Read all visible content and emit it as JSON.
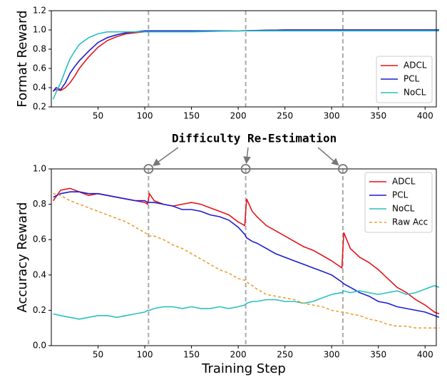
{
  "chart_data": [
    {
      "type": "line",
      "ylabel": "Format Reward",
      "x": [
        2,
        5,
        10,
        15,
        20,
        25,
        30,
        40,
        50,
        60,
        70,
        80,
        90,
        100,
        120,
        150,
        200,
        250,
        300,
        350,
        400,
        415
      ],
      "series": [
        {
          "name": "ADCL",
          "color": "#e3141c",
          "values": [
            0.37,
            0.38,
            0.37,
            0.4,
            0.45,
            0.52,
            0.6,
            0.72,
            0.82,
            0.89,
            0.93,
            0.96,
            0.97,
            0.98,
            0.99,
            0.99,
            0.99,
            1.0,
            1.0,
            1.0,
            1.0,
            1.0
          ]
        },
        {
          "name": "PCL",
          "color": "#1c1cd2",
          "values": [
            0.36,
            0.4,
            0.38,
            0.45,
            0.55,
            0.62,
            0.68,
            0.78,
            0.87,
            0.92,
            0.95,
            0.97,
            0.98,
            0.99,
            0.99,
            0.99,
            0.99,
            1.0,
            1.0,
            1.0,
            1.0,
            1.0
          ]
        },
        {
          "name": "NoCL",
          "color": "#2bbfbf",
          "values": [
            0.28,
            0.35,
            0.45,
            0.58,
            0.7,
            0.78,
            0.85,
            0.92,
            0.96,
            0.98,
            0.98,
            0.98,
            0.98,
            0.98,
            0.98,
            0.98,
            0.99,
            0.99,
            0.99,
            0.99,
            0.99,
            0.99
          ]
        }
      ],
      "xlim": [
        0,
        412
      ],
      "xticks": [
        50,
        100,
        150,
        200,
        250,
        300,
        350,
        400
      ],
      "ylim": [
        0.2,
        1.2
      ],
      "yticks": [
        0.2,
        0.4,
        0.6,
        0.8,
        {
          "value": 1.0,
          "label": "1.0"
        },
        1.2
      ],
      "vlines": [
        104,
        208,
        312
      ],
      "legend": "lower right"
    },
    {
      "type": "line",
      "ylabel": "Accuracy Reward",
      "xlabel": "Training Step",
      "annotation": "Difficulty Re-Estimation",
      "x": [
        2,
        10,
        20,
        30,
        40,
        50,
        60,
        70,
        80,
        90,
        100,
        103,
        105,
        110,
        120,
        130,
        140,
        150,
        160,
        170,
        180,
        190,
        200,
        207,
        209,
        215,
        220,
        230,
        240,
        250,
        260,
        270,
        280,
        290,
        300,
        311,
        313,
        320,
        330,
        340,
        350,
        360,
        370,
        380,
        390,
        400,
        410,
        415
      ],
      "series": [
        {
          "name": "ADCL",
          "color": "#e3141c",
          "values": [
            0.82,
            0.88,
            0.89,
            0.87,
            0.85,
            0.86,
            0.85,
            0.84,
            0.83,
            0.82,
            0.81,
            0.8,
            0.86,
            0.82,
            0.8,
            0.79,
            0.8,
            0.81,
            0.8,
            0.78,
            0.76,
            0.74,
            0.7,
            0.68,
            0.83,
            0.76,
            0.73,
            0.68,
            0.65,
            0.62,
            0.59,
            0.56,
            0.54,
            0.51,
            0.48,
            0.44,
            0.64,
            0.55,
            0.5,
            0.47,
            0.43,
            0.38,
            0.33,
            0.3,
            0.26,
            0.23,
            0.19,
            0.18
          ]
        },
        {
          "name": "PCL",
          "color": "#1c1cd2",
          "values": [
            0.84,
            0.86,
            0.87,
            0.87,
            0.86,
            0.86,
            0.85,
            0.84,
            0.83,
            0.82,
            0.82,
            0.81,
            0.81,
            0.81,
            0.8,
            0.79,
            0.77,
            0.77,
            0.76,
            0.74,
            0.73,
            0.71,
            0.67,
            0.63,
            0.61,
            0.59,
            0.58,
            0.55,
            0.52,
            0.5,
            0.48,
            0.46,
            0.44,
            0.42,
            0.4,
            0.36,
            0.35,
            0.33,
            0.3,
            0.28,
            0.25,
            0.24,
            0.22,
            0.21,
            0.2,
            0.19,
            0.17,
            0.16
          ]
        },
        {
          "name": "NoCL",
          "color": "#2bbfbf",
          "values": [
            0.18,
            0.17,
            0.16,
            0.15,
            0.16,
            0.17,
            0.17,
            0.16,
            0.17,
            0.18,
            0.19,
            0.2,
            0.2,
            0.21,
            0.22,
            0.22,
            0.21,
            0.22,
            0.21,
            0.21,
            0.22,
            0.21,
            0.22,
            0.23,
            0.24,
            0.25,
            0.25,
            0.26,
            0.26,
            0.25,
            0.25,
            0.24,
            0.25,
            0.27,
            0.29,
            0.3,
            0.31,
            0.3,
            0.31,
            0.3,
            0.29,
            0.3,
            0.31,
            0.29,
            0.3,
            0.32,
            0.34,
            0.33
          ]
        },
        {
          "name": "Raw Acc",
          "color": "#eea032",
          "dashed": true,
          "values": [
            0.86,
            0.85,
            0.82,
            0.8,
            0.78,
            0.76,
            0.74,
            0.72,
            0.7,
            0.67,
            0.64,
            0.63,
            0.62,
            0.62,
            0.6,
            0.57,
            0.55,
            0.52,
            0.49,
            0.46,
            0.43,
            0.41,
            0.38,
            0.37,
            0.36,
            0.34,
            0.32,
            0.29,
            0.28,
            0.27,
            0.26,
            0.24,
            0.23,
            0.22,
            0.2,
            0.19,
            0.19,
            0.18,
            0.17,
            0.15,
            0.14,
            0.12,
            0.11,
            0.11,
            0.1,
            0.1,
            0.1,
            0.1
          ]
        }
      ],
      "xlim": [
        0,
        412
      ],
      "xticks": [
        50,
        100,
        150,
        200,
        250,
        300,
        350,
        400
      ],
      "ylim": [
        0,
        1
      ],
      "yticks": [
        {
          "value": 0,
          "label": "0.0"
        },
        0.2,
        0.4,
        0.6,
        0.8,
        {
          "value": 1.0,
          "label": "1.0"
        }
      ],
      "vlines": [
        104,
        208,
        312
      ],
      "legend": "upper right"
    }
  ]
}
